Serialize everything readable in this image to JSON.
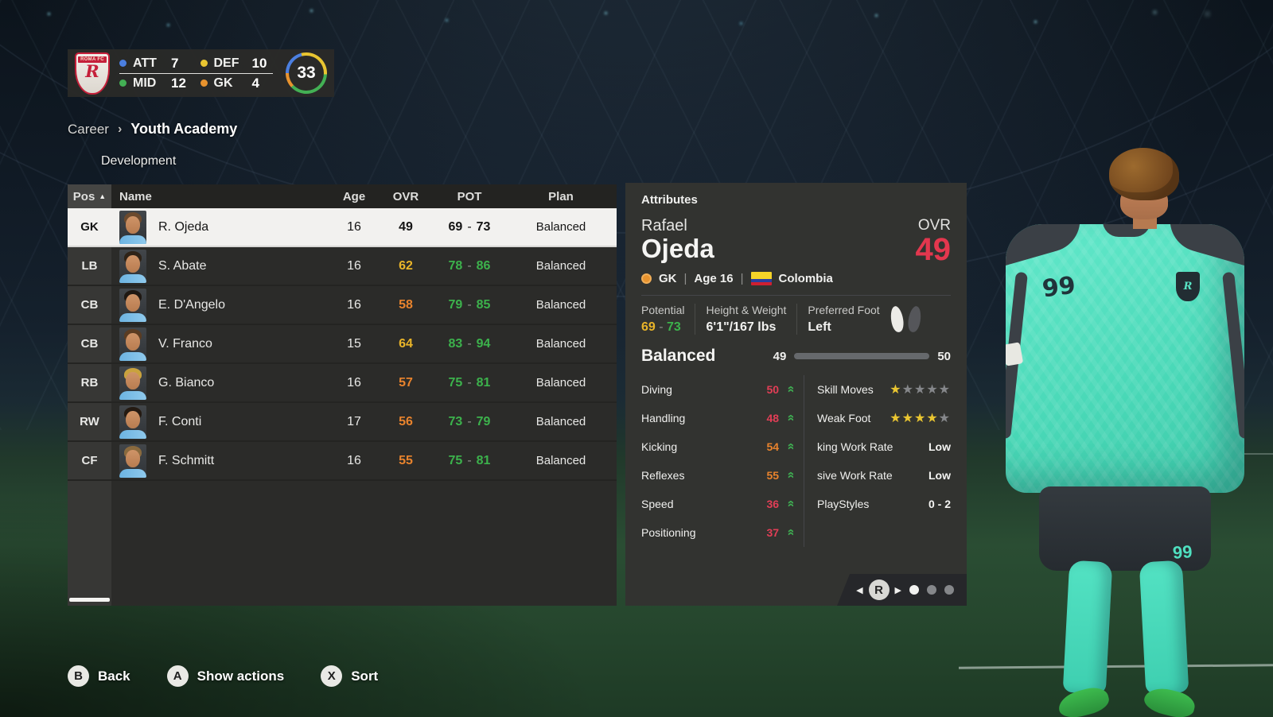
{
  "colors": {
    "accent_red": "#e3374e",
    "gold": "#e9b429",
    "orange": "#e8832d",
    "green": "#3cb24c",
    "red_low": "#e23e56",
    "blue_progress": "#2aa5e8",
    "star_gold": "#e9c531",
    "dot_att": "#4b7fe0",
    "dot_def": "#e9c531",
    "dot_mid": "#43b054",
    "dot_gk": "#e8932e",
    "kit_teal": "#58e3c4"
  },
  "club_panel": {
    "club_name": "ROMA FC",
    "monogram": "R",
    "total": "33",
    "stats": [
      {
        "label": "ATT",
        "value": "7",
        "dot": "#4b7fe0"
      },
      {
        "label": "DEF",
        "value": "10",
        "dot": "#e9c531"
      },
      {
        "label": "MID",
        "value": "12",
        "dot": "#43b054"
      },
      {
        "label": "GK",
        "value": "4",
        "dot": "#e8932e"
      }
    ]
  },
  "breadcrumb": {
    "root": "Career",
    "separator": "›",
    "current": "Youth Academy"
  },
  "tab_label": "Development",
  "icons": {
    "growth_up": "»",
    "sort_asc": "▲",
    "pager_left": "◀",
    "pager_right": "▶"
  },
  "table": {
    "columns": {
      "pos": "Pos",
      "name": "Name",
      "age": "Age",
      "ovr": "OVR",
      "pot": "POT",
      "plan": "Plan"
    },
    "pot_dash": "-",
    "rows": [
      {
        "pos": "GK",
        "name": "R. Ojeda",
        "age": "16",
        "ovr": "49",
        "ovr_color": "#141414",
        "pot_low": "69",
        "pot_high": "73",
        "pot_color": "#141414",
        "plan": "Balanced",
        "selected": true,
        "hair": "#6b4a2e"
      },
      {
        "pos": "LB",
        "name": "S. Abate",
        "age": "16",
        "ovr": "62",
        "ovr_color": "#e9b429",
        "pot_low": "78",
        "pot_high": "86",
        "pot_color": "#3cb24c",
        "plan": "Balanced",
        "selected": false,
        "hair": "#2e2318"
      },
      {
        "pos": "CB",
        "name": "E. D'Angelo",
        "age": "16",
        "ovr": "58",
        "ovr_color": "#e8832d",
        "pot_low": "79",
        "pot_high": "85",
        "pot_color": "#3cb24c",
        "plan": "Balanced",
        "selected": false,
        "hair": "#1f1812"
      },
      {
        "pos": "CB",
        "name": "V. Franco",
        "age": "15",
        "ovr": "64",
        "ovr_color": "#e9b429",
        "pot_low": "83",
        "pot_high": "94",
        "pot_color": "#3cb24c",
        "plan": "Balanced",
        "selected": false,
        "hair": "#5a3c22"
      },
      {
        "pos": "RB",
        "name": "G. Bianco",
        "age": "16",
        "ovr": "57",
        "ovr_color": "#e8832d",
        "pot_low": "75",
        "pot_high": "81",
        "pot_color": "#3cb24c",
        "plan": "Balanced",
        "selected": false,
        "hair": "#c9a23e"
      },
      {
        "pos": "RW",
        "name": "F. Conti",
        "age": "17",
        "ovr": "56",
        "ovr_color": "#e8832d",
        "pot_low": "73",
        "pot_high": "79",
        "pot_color": "#3cb24c",
        "plan": "Balanced",
        "selected": false,
        "hair": "#241a12"
      },
      {
        "pos": "CF",
        "name": "F. Schmitt",
        "age": "16",
        "ovr": "55",
        "ovr_color": "#e8832d",
        "pot_low": "75",
        "pot_high": "81",
        "pot_color": "#3cb24c",
        "plan": "Balanced",
        "selected": false,
        "hair": "#8a6a3e"
      }
    ]
  },
  "attributes": {
    "panel_title": "Attributes",
    "first_name": "Rafael",
    "last_name": "Ojeda",
    "ovr_label": "OVR",
    "ovr_value": "49",
    "position": "GK",
    "age": "Age 16",
    "nation": "Colombia",
    "meta_sep": "|",
    "info": {
      "potential_label": "Potential",
      "potential_low": "69",
      "potential_dash": "-",
      "potential_high": "73",
      "hw_label": "Height & Weight",
      "hw_value": "6'1\"/167 lbs",
      "foot_label": "Preferred Foot",
      "foot_value": "Left"
    },
    "growth_plan": {
      "label": "Balanced",
      "current": "49",
      "next": "50",
      "progress_width": "62%"
    },
    "stats": [
      {
        "label": "Diving",
        "value": "50",
        "color": "#e23e56"
      },
      {
        "label": "Handling",
        "value": "48",
        "color": "#e23e56"
      },
      {
        "label": "Kicking",
        "value": "54",
        "color": "#e8832d"
      },
      {
        "label": "Reflexes",
        "value": "55",
        "color": "#e8832d"
      },
      {
        "label": "Speed",
        "value": "36",
        "color": "#e23e56"
      },
      {
        "label": "Positioning",
        "value": "37",
        "color": "#e23e56"
      }
    ],
    "traits": {
      "skill_moves": {
        "label": "Skill Moves",
        "stars_filled": "★",
        "stars_empty": "★★★★"
      },
      "weak_foot": {
        "label": "Weak Foot",
        "stars_filled": "★★★★",
        "stars_empty": "★"
      },
      "att_wr": {
        "label": "king Work Rate",
        "value": "Low"
      },
      "def_wr": {
        "label": "sive Work Rate",
        "value": "Low"
      },
      "playstyles": {
        "label": "PlayStyles",
        "value": "0 - 2"
      }
    },
    "pager": {
      "button": "R",
      "dots": 3,
      "active_dot": 1
    }
  },
  "player_model": {
    "shirt_number": "99",
    "shorts_number": "99",
    "badge_letter": "R"
  },
  "bottom_bar": [
    {
      "button": "B",
      "label": "Back"
    },
    {
      "button": "A",
      "label": "Show actions"
    },
    {
      "button": "X",
      "label": "Sort"
    }
  ]
}
